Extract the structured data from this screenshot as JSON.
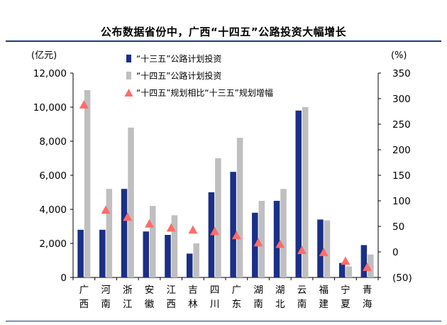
{
  "title": "公布数据省份中，广西“十四五”公路投资大幅增长",
  "chart_data": {
    "type": "bar",
    "title": "公布数据省份中，广西“十四五”公路投资大幅增长",
    "y_left_unit": "(亿元)",
    "y_right_unit": "(%)",
    "y_left_ticks": [
      "12,000",
      "10,000",
      "8,000",
      "6,000",
      "4,000",
      "2,000",
      "0"
    ],
    "y_right_ticks": [
      "350",
      "300",
      "250",
      "200",
      "150",
      "100",
      "50",
      "0",
      "(50)"
    ],
    "ylim_left": [
      0,
      12000
    ],
    "ylim_right": [
      -50,
      350
    ],
    "categories": [
      "广西",
      "河南",
      "浙江",
      "安徽",
      "江西",
      "吉林",
      "四川",
      "广东",
      "湖南",
      "湖北",
      "云南",
      "福建",
      "宁夏",
      "青海"
    ],
    "series": [
      {
        "name": "“十三五”公路计划投资",
        "type": "bar",
        "axis": "left",
        "color": "#1b2f86",
        "values": [
          2800,
          2800,
          5200,
          2700,
          2500,
          1400,
          5000,
          6200,
          3800,
          4500,
          9800,
          3400,
          850,
          1900
        ]
      },
      {
        "name": "“十四五”公路计划投资",
        "type": "bar",
        "axis": "left",
        "color": "#bfbfbf",
        "values": [
          11000,
          5200,
          8800,
          4200,
          3650,
          2000,
          7000,
          8200,
          4500,
          5200,
          10000,
          3350,
          650,
          1350
        ]
      },
      {
        "name": "“十四五”规划相比“十三五”规划增幅",
        "type": "scatter",
        "marker": "triangle",
        "axis": "right",
        "color": "#ff6b6b",
        "values": [
          288,
          82,
          68,
          55,
          47,
          43,
          40,
          32,
          18,
          15,
          3,
          -1,
          -18,
          -30
        ]
      }
    ],
    "legend_position": "top-center",
    "grid": false
  }
}
